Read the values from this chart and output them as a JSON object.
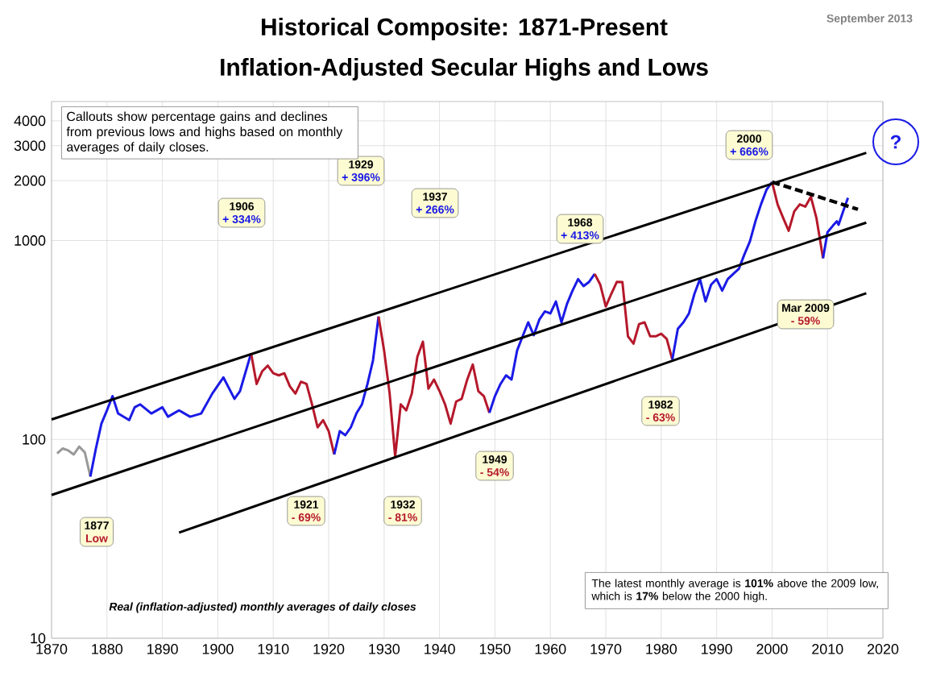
{
  "chart_data": {
    "type": "line",
    "title": "Historical Composite: 1871-Present",
    "subtitle": "Inflation-Adjusted Secular Highs and Lows",
    "log": "y",
    "grid": true,
    "xlim": [
      1870,
      2020
    ],
    "ylim": [
      10,
      5000
    ],
    "xticks": [
      1870,
      1880,
      1890,
      1900,
      1910,
      1920,
      1930,
      1940,
      1950,
      1960,
      1970,
      1980,
      1990,
      2000,
      2010,
      2020
    ],
    "yticks": [
      10,
      100,
      1000,
      2000,
      3000,
      4000
    ],
    "series": [
      {
        "color": "#999999",
        "x": [
          1871,
          1872,
          1873,
          1874,
          1875,
          1876,
          1877
        ],
        "values": [
          85,
          90,
          88,
          84,
          92,
          86,
          65
        ]
      },
      {
        "color": "#1a1ae6",
        "x": [
          1877,
          1878,
          1879,
          1880,
          1881,
          1882,
          1884,
          1885,
          1886,
          1888,
          1890,
          1891,
          1893,
          1895,
          1897,
          1899,
          1901,
          1903,
          1904,
          1906
        ],
        "values": [
          65,
          90,
          120,
          140,
          165,
          135,
          125,
          145,
          150,
          135,
          145,
          130,
          140,
          130,
          135,
          170,
          205,
          160,
          175,
          271
        ]
      },
      {
        "color": "#b5182b",
        "x": [
          1906,
          1907,
          1908,
          1909,
          1910,
          1911,
          1912,
          1913,
          1914,
          1915,
          1916,
          1917,
          1918,
          1919,
          1920,
          1921
        ],
        "values": [
          271,
          190,
          220,
          235,
          215,
          210,
          215,
          185,
          170,
          195,
          190,
          150,
          115,
          125,
          110,
          84
        ]
      },
      {
        "color": "#1a1ae6",
        "x": [
          1921,
          1922,
          1923,
          1924,
          1925,
          1926,
          1927,
          1928,
          1929
        ],
        "values": [
          84,
          110,
          105,
          115,
          135,
          150,
          190,
          250,
          415
        ]
      },
      {
        "color": "#b5182b",
        "x": [
          1929,
          1930,
          1931,
          1932,
          1933,
          1934,
          1935,
          1936,
          1937,
          1938,
          1939,
          1940,
          1941,
          1942,
          1943,
          1944,
          1945,
          1946,
          1947,
          1948,
          1949
        ],
        "values": [
          415,
          280,
          170,
          82,
          150,
          140,
          170,
          260,
          310,
          180,
          200,
          175,
          150,
          120,
          155,
          160,
          200,
          238,
          175,
          165,
          136
        ]
      },
      {
        "color": "#1a1ae6",
        "x": [
          1949,
          1950,
          1951,
          1952,
          1953,
          1954,
          1955,
          1956,
          1957,
          1958,
          1959,
          1960,
          1961,
          1962,
          1963,
          1964,
          1965,
          1966,
          1967,
          1968
        ],
        "values": [
          136,
          165,
          190,
          210,
          200,
          280,
          330,
          388,
          334,
          400,
          440,
          430,
          494,
          388,
          480,
          560,
          640,
          590,
          620,
          680
        ]
      },
      {
        "color": "#b5182b",
        "x": [
          1968,
          1969,
          1970,
          1971,
          1972,
          1973,
          1974,
          1975,
          1976,
          1977,
          1978,
          1979,
          1980,
          1981,
          1982
        ],
        "values": [
          680,
          600,
          466,
          540,
          620,
          618,
          330,
          303,
          380,
          388,
          330,
          330,
          340,
          320,
          252
        ]
      },
      {
        "color": "#1a1ae6",
        "x": [
          1982,
          1983,
          1984,
          1985,
          1986,
          1987,
          1988,
          1989,
          1990,
          1991,
          1992,
          1993,
          1994,
          1995,
          1996,
          1997,
          1998,
          1999,
          2000
        ],
        "values": [
          252,
          360,
          388,
          430,
          540,
          640,
          494,
          600,
          640,
          560,
          640,
          680,
          720,
          850,
          990,
          1250,
          1520,
          1800,
          1970
        ]
      },
      {
        "color": "#b5182b",
        "x": [
          2000,
          2001,
          2002,
          2003,
          2004,
          2005,
          2006,
          2007,
          2008,
          2009.2
        ],
        "values": [
          1970,
          1520,
          1300,
          1120,
          1400,
          1520,
          1480,
          1660,
          1300,
          815
        ]
      },
      {
        "color": "#1a1ae6",
        "x": [
          2009.2,
          2010,
          2011,
          2011.7,
          2012,
          2013,
          2013.7
        ],
        "values": [
          815,
          1100,
          1190,
          1250,
          1200,
          1450,
          1640
        ]
      },
      {
        "color": "#000000",
        "x": [
          1870,
          2017
        ],
        "values": [
          126,
          2760
        ]
      },
      {
        "color": "#000000",
        "x": [
          1870,
          2017
        ],
        "values": [
          52.5,
          1230
        ]
      },
      {
        "color": "#000000",
        "x": [
          1893,
          2017
        ],
        "values": [
          34,
          543
        ]
      },
      {
        "color": "#000000",
        "line_style": "dashed",
        "x": [
          2000,
          2015.5
        ],
        "values": [
          1970,
          1435
        ]
      }
    ],
    "annotations": [
      "Callouts show percentage gains and declines from previous lows and highs based on monthly averages of daily closes.",
      "1906",
      "+ 334%",
      "1929",
      "+ 396%",
      "1937",
      "+ 266%",
      "1968",
      "+ 413%",
      "2000",
      "+ 666%",
      "1877",
      "Low",
      "1921",
      "- 69%",
      "1932",
      "- 81%",
      "1949",
      "- 54%",
      "1982",
      "- 63%",
      "Mar 2009",
      "- 59%",
      "?",
      "Real (inflation-adjusted) monthly averages of daily closes",
      "The latest monthly average is **101%** above the 2009 low, which is **17%** below the 2000 high.",
      "September 2013"
    ]
  }
}
